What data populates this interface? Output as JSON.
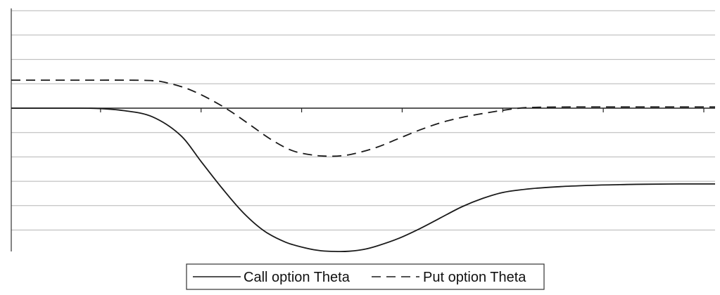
{
  "chart_data": {
    "type": "line",
    "title": "",
    "xlabel": "",
    "ylabel": "",
    "grid": true,
    "legend_position": "bottom-center",
    "x_tick_count": 8,
    "y_gridline_count": 10,
    "xlim": [
      0,
      1
    ],
    "ylim": [
      -5.9,
      4.1
    ],
    "series": [
      {
        "name": "Call option Theta",
        "style": "solid",
        "color": "#1a1a1a",
        "x": [
          0,
          0.04,
          0.08,
          0.12,
          0.16,
          0.2,
          0.24,
          0.27,
          0.3,
          0.33,
          0.36,
          0.39,
          0.42,
          0.44,
          0.46,
          0.48,
          0.5,
          0.52,
          0.55,
          0.58,
          0.61,
          0.64,
          0.67,
          0.7,
          0.74,
          0.78,
          0.82,
          0.86,
          0.9,
          0.95,
          1.0
        ],
        "values": [
          0,
          0,
          0,
          -0.01,
          -0.1,
          -0.35,
          -1.1,
          -2.2,
          -3.3,
          -4.3,
          -5.05,
          -5.5,
          -5.75,
          -5.85,
          -5.88,
          -5.87,
          -5.8,
          -5.65,
          -5.35,
          -4.95,
          -4.5,
          -4.05,
          -3.7,
          -3.45,
          -3.3,
          -3.22,
          -3.17,
          -3.14,
          -3.12,
          -3.11,
          -3.11
        ]
      },
      {
        "name": "Put option Theta",
        "style": "dashed",
        "color": "#1a1a1a",
        "x": [
          0,
          0.04,
          0.08,
          0.12,
          0.16,
          0.2,
          0.22,
          0.25,
          0.28,
          0.31,
          0.34,
          0.37,
          0.4,
          0.43,
          0.45,
          0.47,
          0.49,
          0.52,
          0.55,
          0.58,
          0.61,
          0.64,
          0.67,
          0.7,
          0.73,
          0.76,
          0.8,
          0.85,
          0.9,
          0.95,
          1.0
        ],
        "values": [
          1.15,
          1.15,
          1.15,
          1.15,
          1.15,
          1.13,
          1.05,
          0.8,
          0.4,
          -0.1,
          -0.7,
          -1.3,
          -1.75,
          -1.93,
          -1.97,
          -1.95,
          -1.85,
          -1.6,
          -1.25,
          -0.9,
          -0.6,
          -0.38,
          -0.22,
          -0.08,
          0.02,
          0.04,
          0.05,
          0.05,
          0.05,
          0.05,
          0.05
        ]
      }
    ]
  }
}
